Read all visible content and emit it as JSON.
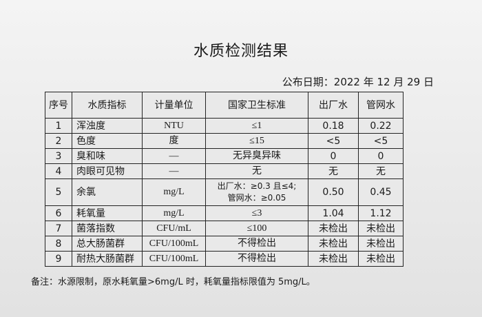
{
  "title": "水质检测结果",
  "date": "公布日期：2022 年 12 月 29 日",
  "table": {
    "headers": [
      "序号",
      "水质指标",
      "计量单位",
      "国家卫生标准",
      "出厂水",
      "管网水"
    ],
    "rows": [
      {
        "no": "1",
        "name": "浑浊度",
        "unit": "NTU",
        "standard": "≤1",
        "plant": "0.18",
        "network": "0.22"
      },
      {
        "no": "2",
        "name": "色度",
        "unit": "度",
        "standard": "≤15",
        "plant": "<5",
        "network": "<5"
      },
      {
        "no": "3",
        "name": "臭和味",
        "unit": "—",
        "standard": "无异臭异味",
        "plant": "0",
        "network": "0"
      },
      {
        "no": "4",
        "name": "肉眼可见物",
        "unit": "—",
        "standard": "无",
        "plant": "无",
        "network": "无"
      },
      {
        "no": "5",
        "name": "余氯",
        "unit": "mg/L",
        "standard": "出厂水：≥0.3 且≤4;",
        "standard2": "管网水：≥0.05",
        "plant": "0.50",
        "network": "0.45"
      },
      {
        "no": "6",
        "name": "耗氧量",
        "unit": "mg/L",
        "standard": "≤3",
        "plant": "1.04",
        "network": "1.12"
      },
      {
        "no": "7",
        "name": "菌落指数",
        "unit": "CFU/mL",
        "standard": "≤100",
        "plant": "未检出",
        "network": "未检出"
      },
      {
        "no": "8",
        "name": "总大肠菌群",
        "unit": "CFU/100mL",
        "standard": "不得检出",
        "plant": "未检出",
        "network": "未检出"
      },
      {
        "no": "9",
        "name": "耐热大肠菌群",
        "unit": "CFU/100mL",
        "standard": "不得检出",
        "plant": "未检出",
        "network": "未检出"
      }
    ]
  },
  "note": "备注：水源限制，原水耗氧量>6mg/L 时，耗氧量指标限值为 5mg/L。"
}
